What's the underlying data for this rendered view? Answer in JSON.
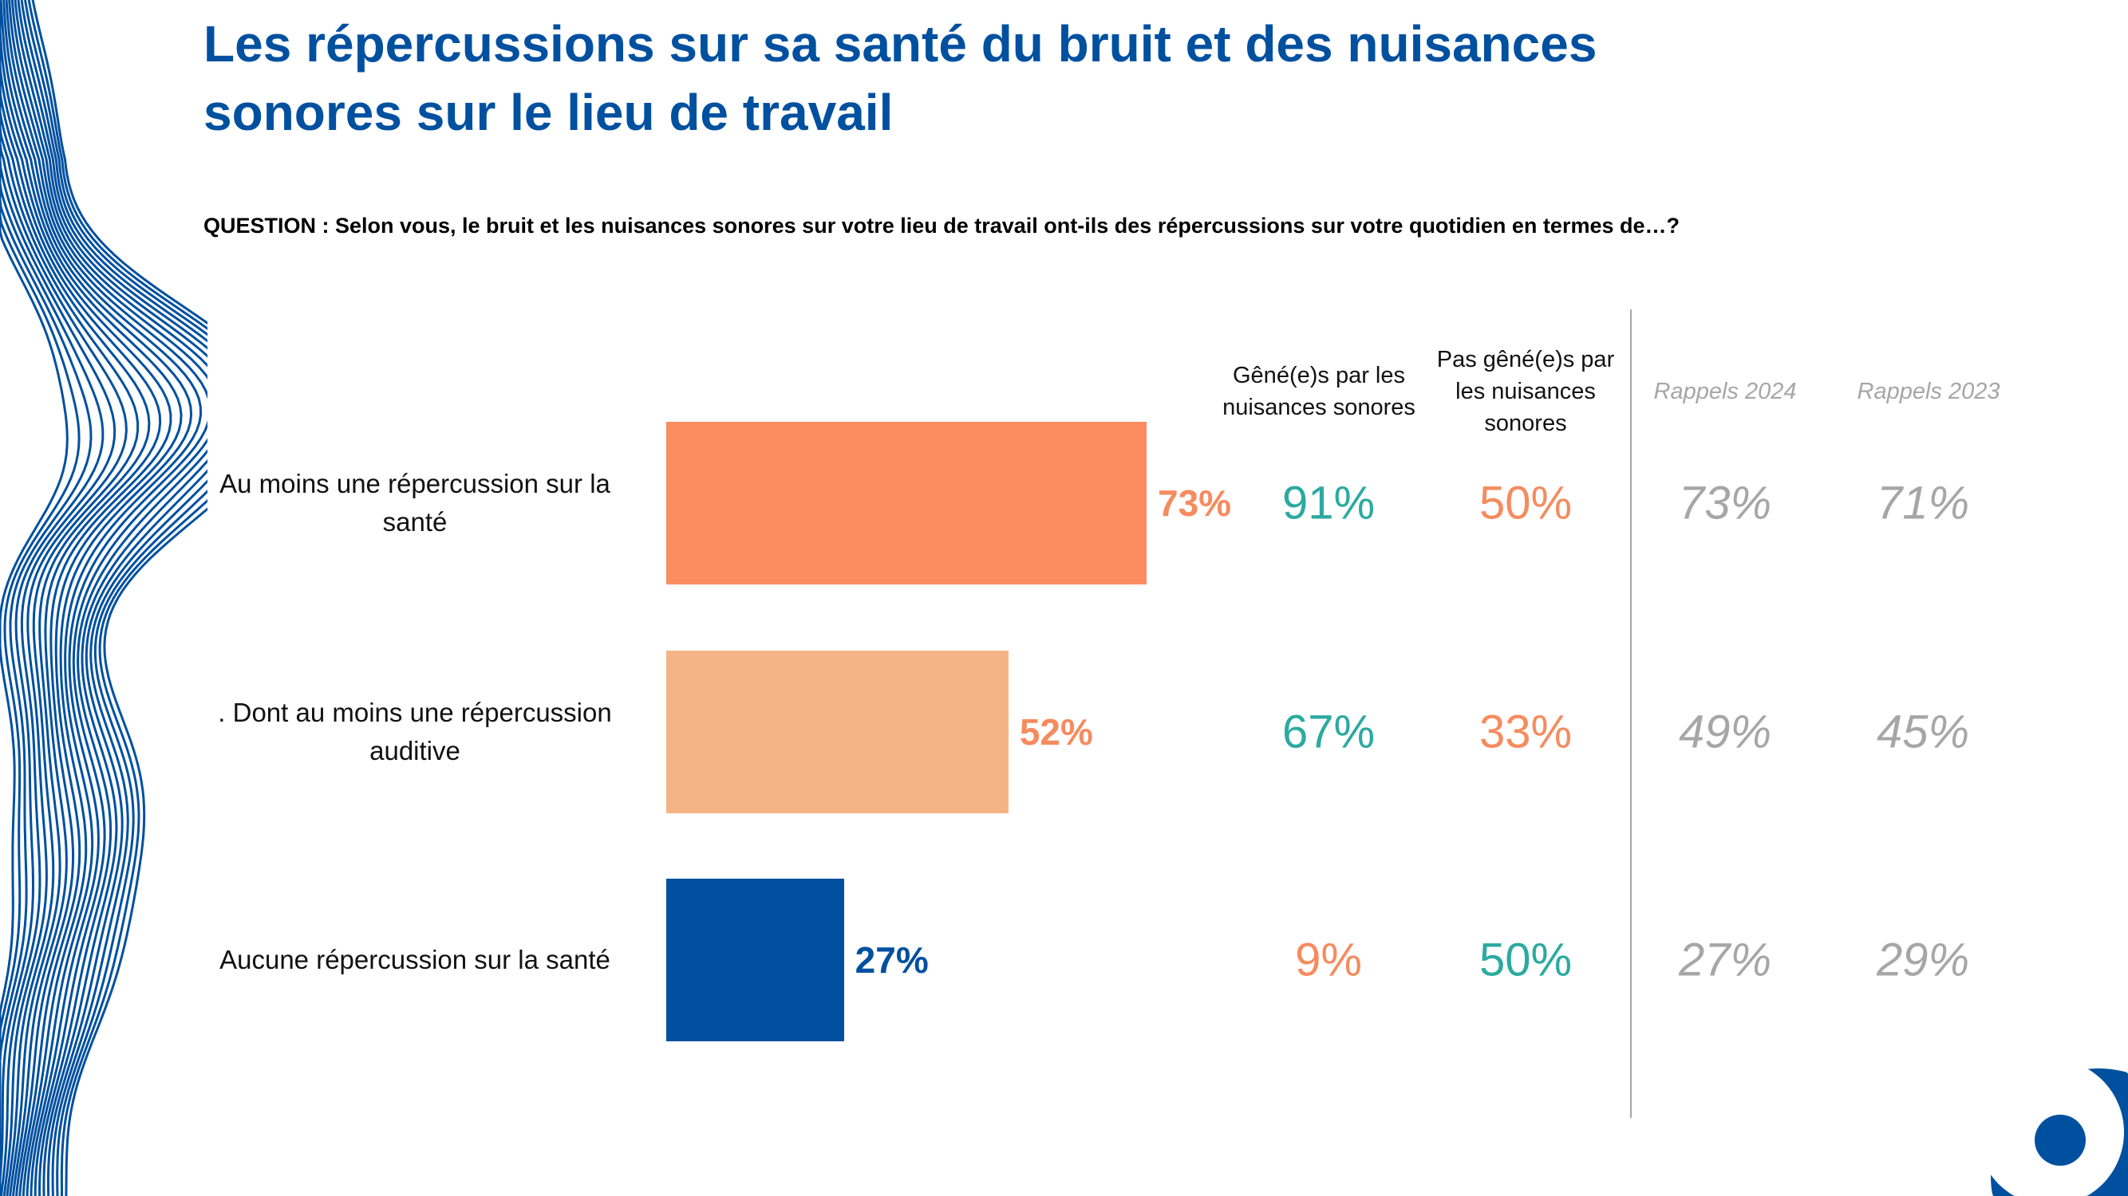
{
  "title": "Les répercussions sur sa santé du bruit et des nuisances sonores sur le lieu de travail",
  "question": "QUESTION : Selon vous, le bruit et les nuisances sonores sur votre lieu de travail ont-ils des répercussions sur votre quotidien en termes de…?",
  "colors": {
    "title": "#0050A0",
    "teal": "#2BAAA0",
    "orange": "#F58B5E",
    "grey": "#A6A6A6"
  },
  "chart_data": {
    "type": "bar",
    "orientation": "horizontal",
    "categories": [
      "Au moins une répercussion sur la santé",
      ". Dont au moins une répercussion auditive",
      "Aucune répercussion sur la santé"
    ],
    "values": [
      73,
      52,
      27
    ],
    "value_labels": [
      "73%",
      "52%",
      "27%"
    ],
    "bar_colors": [
      "#FB8D61",
      "#F4B486",
      "#0050A0"
    ],
    "xlim": [
      0,
      100
    ],
    "grid": false
  },
  "table": {
    "columns": [
      {
        "label": "Gêné(e)s par les nuisances sonores",
        "values": [
          "91%",
          "67%",
          "9%"
        ],
        "colors": [
          "#2BAAA0",
          "#2BAAA0",
          "#F58B5E"
        ]
      },
      {
        "label": "Pas gêné(e)s par les nuisances sonores",
        "values": [
          "50%",
          "33%",
          "50%"
        ],
        "colors": [
          "#F58B5E",
          "#F58B5E",
          "#2BAAA0"
        ]
      },
      {
        "label": "Rappels 2024",
        "values": [
          "73%",
          "49%",
          "27%"
        ]
      },
      {
        "label": "Rappels 2023",
        "values": [
          "71%",
          "45%",
          "29%"
        ]
      }
    ]
  }
}
